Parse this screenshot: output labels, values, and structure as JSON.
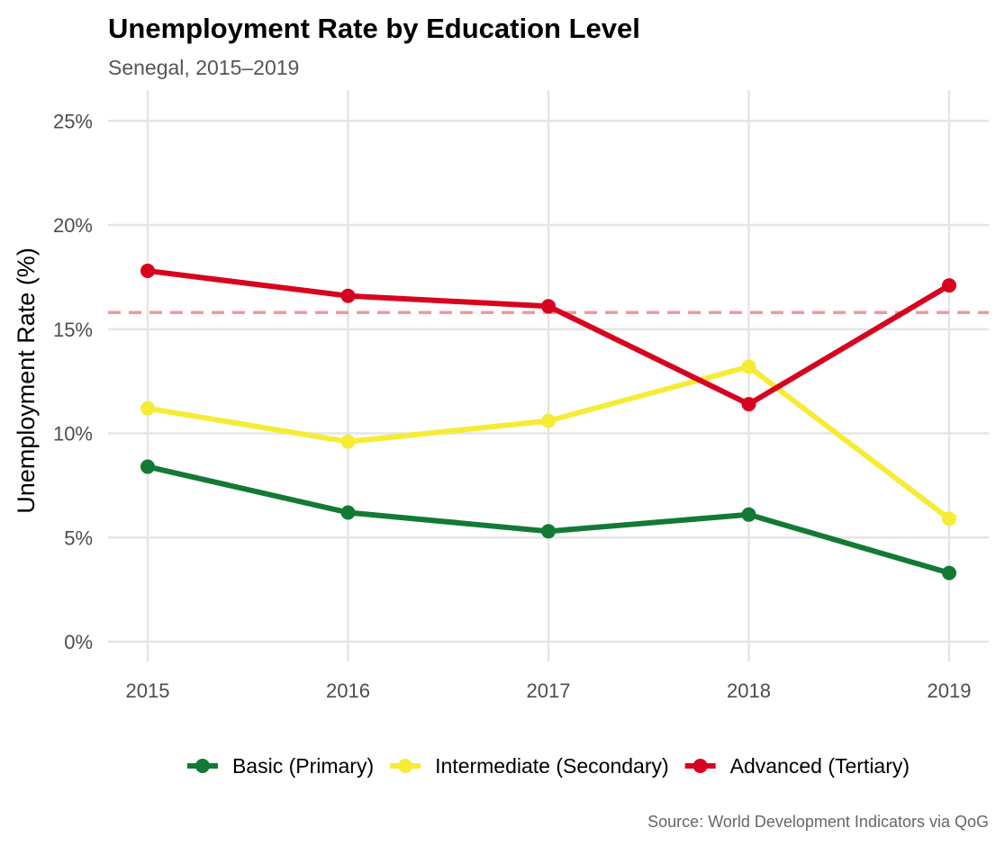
{
  "chart_data": {
    "type": "line",
    "title": "Unemployment Rate by Education Level",
    "subtitle": "Senegal, 2015–2019",
    "ylabel": "Unemployment Rate (%)",
    "xlabel": "",
    "caption": "Source: World Development Indicators via QoG",
    "x": [
      2015,
      2016,
      2017,
      2018,
      2019
    ],
    "x_tick_labels": [
      "2015",
      "2016",
      "2017",
      "2018",
      "2019"
    ],
    "y_ticks": [
      0,
      5,
      10,
      15,
      20,
      25
    ],
    "y_tick_labels": [
      "0%",
      "5%",
      "10%",
      "15%",
      "20%",
      "25%"
    ],
    "ylim": [
      0,
      25
    ],
    "grid": true,
    "legend_position": "bottom",
    "reference_line": {
      "value": 15.8,
      "style": "dashed",
      "color": "#ec8f96"
    },
    "series": [
      {
        "name": "Basic (Primary)",
        "color": "#137a35",
        "values": [
          8.4,
          6.2,
          5.3,
          6.1,
          3.3
        ]
      },
      {
        "name": "Intermediate (Secondary)",
        "color": "#f6ec36",
        "values": [
          11.2,
          9.6,
          10.6,
          13.2,
          5.9
        ]
      },
      {
        "name": "Advanced (Tertiary)",
        "color": "#d7041f",
        "values": [
          17.8,
          16.6,
          16.1,
          11.4,
          17.1
        ]
      }
    ]
  }
}
